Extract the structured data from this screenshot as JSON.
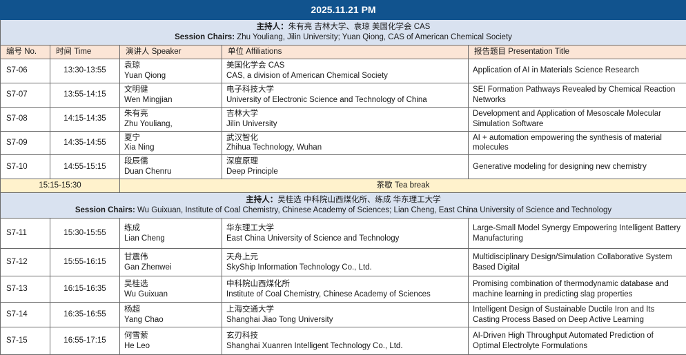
{
  "header": {
    "date_title": "2025.11.21 PM"
  },
  "session1": {
    "chairs_cn_label": "主持人：",
    "chairs_cn": "朱有亮 吉林大学、袁琼 美国化学会 CAS",
    "chairs_en_label": "Session Chairs:",
    "chairs_en": " Zhu Youliang, Jilin University; Yuan Qiong, CAS of American Chemical Society"
  },
  "session2": {
    "chairs_cn_label": "主持人：",
    "chairs_cn": "吴桂选 中科院山西煤化所、练成 华东理工大学",
    "chairs_en_label": "Session Chairs:",
    "chairs_en": " Wu Guixuan, Institute of Coal Chemistry, Chinese Academy of Sciences; Lian Cheng, East China University of Science and Technology"
  },
  "columns": {
    "no": "编号 No.",
    "time": "时间 Time",
    "speaker": "演讲人 Speaker",
    "affiliation": "单位 Affiliations",
    "title": "报告题目 Presentation Title"
  },
  "tea_break": {
    "time": "15:15-15:30",
    "label": "茶歇 Tea break"
  },
  "rows": [
    {
      "no": "S7-06",
      "time": "13:30-13:55",
      "speaker_cn": "袁琼",
      "speaker_en": "Yuan Qiong",
      "aff_cn": "美国化学会 CAS",
      "aff_en": "CAS, a division of American Chemical Society",
      "title": "Application of AI in Materials Science Research"
    },
    {
      "no": "S7-07",
      "time": "13:55-14:15",
      "speaker_cn": "文明健",
      "speaker_en": "Wen Mingjian",
      "aff_cn": "电子科技大学",
      "aff_en": "University of Electronic Science and Technology of China",
      "title": "SEI Formation Pathways Revealed by Chemical Reaction Networks"
    },
    {
      "no": "S7-08",
      "time": "14:15-14:35",
      "speaker_cn": "朱有亮",
      "speaker_en": "Zhu Youliang,",
      "aff_cn": "吉林大学",
      "aff_en": "Jilin University",
      "title": "Development and Application of Mesoscale Molecular Simulation Software"
    },
    {
      "no": "S7-09",
      "time": "14:35-14:55",
      "speaker_cn": "夏宁",
      "speaker_en": "Xia Ning",
      "aff_cn": "武汉智化",
      "aff_en": "Zhihua Technology, Wuhan",
      "title": "AI + automation empowering the synthesis of material molecules"
    },
    {
      "no": "S7-10",
      "time": "14:55-15:15",
      "speaker_cn": "段辰儒",
      "speaker_en": "Duan Chenru",
      "aff_cn": "深度原理",
      "aff_en": "Deep Principle",
      "title": "Generative modeling for designing new chemistry"
    },
    {
      "no": "S7-11",
      "time": "15:30-15:55",
      "speaker_cn": "练成",
      "speaker_en": "Lian Cheng",
      "aff_cn": "华东理工大学",
      "aff_en": "East China University of Science and Technology",
      "title": "Large-Small Model Synergy Empowering Intelligent Battery Manufacturing"
    },
    {
      "no": "S7-12",
      "time": "15:55-16:15",
      "speaker_cn": "甘震伟",
      "speaker_en": "Gan Zhenwei",
      "aff_cn": "天舟上元",
      "aff_en": "SkyShip Information Technology Co., Ltd.",
      "title": "Multidisciplinary Design/Simulation Collaborative System Based Digital"
    },
    {
      "no": "S7-13",
      "time": "16:15-16:35",
      "speaker_cn": "吴桂选",
      "speaker_en": "Wu Guixuan",
      "aff_cn": "中科院山西煤化所",
      "aff_en": "Institute of Coal Chemistry, Chinese Academy of Sciences",
      "title": "Promising combination of thermodynamic database and machine learning in predicting slag properties"
    },
    {
      "no": "S7-14",
      "time": "16:35-16:55",
      "speaker_cn": "杨超",
      "speaker_en": "Yang Chao",
      "aff_cn": "上海交通大学",
      "aff_en": "Shanghai Jiao Tong University",
      "title": "Intelligent Design of Sustainable Ductile Iron and Its Casting Process Based on Deep Active Learning"
    },
    {
      "no": "S7-15",
      "time": "16:55-17:15",
      "speaker_cn": "何雪萦",
      "speaker_en": "He Leo",
      "aff_cn": "玄刃科技",
      "aff_en": "Shanghai Xuanren Intelligent Technology Co., Ltd.",
      "title": "AI-Driven High Throughput Automated Prediction of Optimal Electrolyte Formulations"
    }
  ],
  "colors": {
    "header_bg": "#11538e",
    "chairs_bg": "#d9e2f0",
    "column_header_bg": "#fbe5d6",
    "tea_break_bg": "#fff2cc",
    "border": "#6a6a6a",
    "header_text": "#ffffff",
    "body_text": "#1a1a1a"
  }
}
